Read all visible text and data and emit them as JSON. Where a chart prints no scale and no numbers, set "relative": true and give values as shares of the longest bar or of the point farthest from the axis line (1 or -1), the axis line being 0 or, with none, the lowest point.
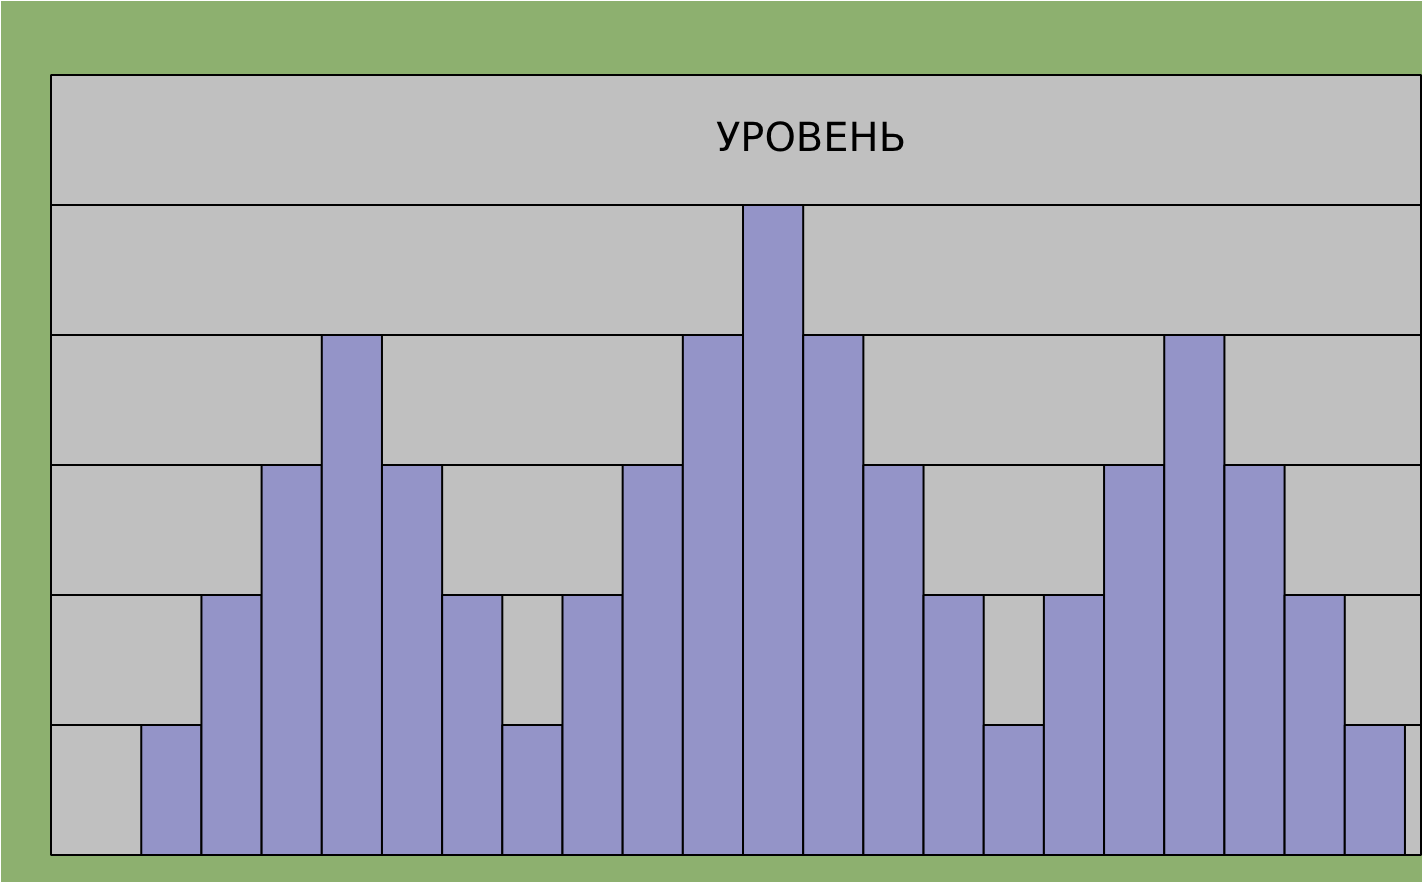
{
  "chart_data": {
    "type": "bar",
    "title": "УРОВЕНЬ",
    "relative": true,
    "grid": "y",
    "color": "#9494c8",
    "categories": [
      null,
      null,
      null,
      null,
      null,
      null,
      null,
      null,
      null,
      null,
      null,
      null,
      null,
      null,
      null,
      null,
      null,
      null,
      null,
      null,
      null
    ],
    "values": [
      0.2,
      0.4,
      0.6,
      0.8,
      0.6,
      0.4,
      0.2,
      0.4,
      0.6,
      0.8,
      1,
      0.8,
      0.6,
      0.4,
      0.2,
      0.4,
      0.6,
      0.8,
      0.6,
      0.4,
      0.2
    ]
  }
}
